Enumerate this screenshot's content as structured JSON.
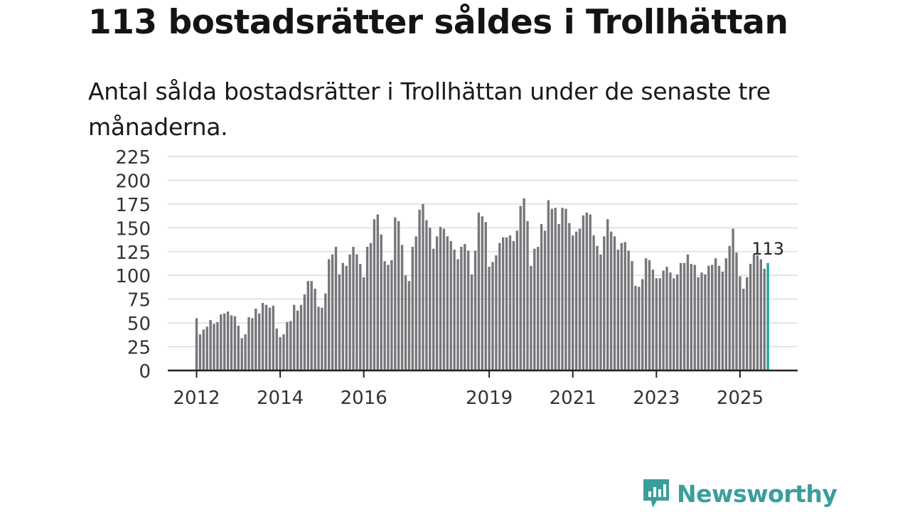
{
  "title": "113 bostadsrätter såldes i Trollhättan",
  "subtitle": "Antal sålda bostadsrätter i Trollhättan under de senaste tre månaderna.",
  "brand": {
    "name": "Newsworthy",
    "color": "#3a9e9c"
  },
  "colors": {
    "bar": "#77767b",
    "highlight": "#1fa5a0",
    "grid": "#dcdcdc",
    "axis": "#222222",
    "text": "#333333"
  },
  "chart_data": {
    "type": "bar",
    "title": "113 bostadsrätter såldes i Trollhättan",
    "xlabel": "",
    "ylabel": "",
    "ylim": [
      0,
      225
    ],
    "y_ticks": [
      0,
      25,
      50,
      75,
      100,
      125,
      150,
      175,
      200,
      225
    ],
    "x_tick_labels": [
      "2012",
      "2014",
      "2016",
      "2019",
      "2021",
      "2023",
      "2025"
    ],
    "x_tick_indices": [
      0,
      24,
      48,
      84,
      108,
      132,
      156
    ],
    "first_period": "2012-01",
    "last_value_label": "113",
    "series": [
      {
        "name": "Antal sålda bostadsrätter (senaste tre månaderna)",
        "values": [
          55,
          38,
          43,
          46,
          53,
          49,
          51,
          59,
          60,
          62,
          58,
          57,
          47,
          34,
          38,
          56,
          55,
          65,
          60,
          71,
          69,
          66,
          68,
          44,
          35,
          38,
          51,
          52,
          69,
          63,
          69,
          80,
          94,
          94,
          86,
          67,
          66,
          81,
          117,
          122,
          130,
          101,
          113,
          110,
          122,
          130,
          122,
          112,
          98,
          130,
          134,
          159,
          164,
          143,
          115,
          111,
          116,
          161,
          157,
          132,
          100,
          94,
          130,
          141,
          169,
          175,
          158,
          150,
          128,
          141,
          151,
          149,
          141,
          136,
          127,
          117,
          130,
          133,
          126,
          101,
          126,
          166,
          162,
          156,
          109,
          114,
          121,
          134,
          140,
          140,
          142,
          136,
          147,
          173,
          181,
          157,
          110,
          128,
          130,
          154,
          147,
          179,
          170,
          171,
          154,
          171,
          170,
          155,
          142,
          146,
          149,
          163,
          166,
          164,
          142,
          131,
          122,
          141,
          159,
          146,
          141,
          127,
          134,
          135,
          126,
          115,
          89,
          88,
          96,
          118,
          116,
          106,
          97,
          97,
          105,
          109,
          103,
          97,
          101,
          113,
          113,
          122,
          112,
          111,
          98,
          103,
          101,
          110,
          111,
          118,
          110,
          104,
          118,
          131,
          149,
          124,
          99,
          86,
          98,
          112,
          122,
          121,
          117,
          107,
          113
        ]
      }
    ]
  }
}
